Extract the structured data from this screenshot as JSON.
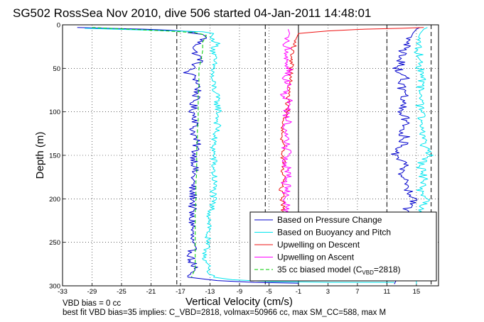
{
  "chart_data": {
    "type": "line",
    "title": "SG502 RossSea Nov 2010, dive 506 started 04-Jan-2011 14:48:01",
    "xlabel": "Vertical Velocity (cm/s)",
    "ylabel": "Depth (m)",
    "xlim": [
      -33,
      18
    ],
    "ylim": [
      300,
      0
    ],
    "y_reversed": true,
    "grid": "dotted",
    "x_ticks": [
      -33,
      -29,
      -25,
      -21,
      -17,
      -13,
      -9,
      -5,
      -1,
      3,
      7,
      11,
      15
    ],
    "y_ticks": [
      0,
      50,
      100,
      150,
      200,
      250,
      300
    ],
    "legend_position": "bottom-right",
    "legend": [
      {
        "label": "Based on Pressure Change",
        "color": "#0000cc",
        "style": "solid"
      },
      {
        "label": "Based on Buoyancy and Pitch",
        "color": "#00e5ee",
        "style": "solid"
      },
      {
        "label": "Upwelling on Descent",
        "color": "#ee1111",
        "style": "solid"
      },
      {
        "label": "Upwelling on Ascent",
        "color": "#ff00ff",
        "style": "solid"
      },
      {
        "label_prefix": "35 cc biased model (C",
        "label_sub": "VBD",
        "label_suffix": "=2818)",
        "color": "#00cc00",
        "style": "dashed"
      }
    ],
    "reference_lines": [
      {
        "x": -17.5,
        "style": "dashed",
        "color": "#000000"
      },
      {
        "x": -5.5,
        "style": "dashed",
        "color": "#000000"
      },
      {
        "x": -1.0,
        "style": "solid",
        "color": "#000000"
      },
      {
        "x": 11.0,
        "style": "dashed",
        "color": "#000000"
      },
      {
        "x": 17.0,
        "style": "dashed",
        "color": "#000000"
      }
    ],
    "series": [
      {
        "key": "pressure_descent",
        "color": "#0000cc",
        "width": 1,
        "points": [
          [
            -31,
            3
          ],
          [
            -27,
            4
          ],
          [
            -22,
            5
          ],
          [
            -19,
            6
          ],
          [
            -17,
            7
          ],
          [
            -15,
            8
          ],
          [
            -16,
            9
          ],
          [
            -14,
            11
          ],
          [
            -13.5,
            14
          ],
          [
            -14.5,
            20
          ],
          [
            -15.2,
            30
          ],
          [
            -14.2,
            40
          ],
          [
            -15.5,
            50
          ],
          [
            -16.2,
            55
          ],
          [
            -15,
            60
          ],
          [
            -14.5,
            70
          ],
          [
            -14.8,
            80
          ],
          [
            -15.3,
            90
          ],
          [
            -15.3,
            100
          ],
          [
            -14.8,
            110
          ],
          [
            -15.3,
            120
          ],
          [
            -15,
            130
          ],
          [
            -14.8,
            140
          ],
          [
            -15.1,
            150
          ],
          [
            -15,
            160
          ],
          [
            -15.2,
            170
          ],
          [
            -15.3,
            180
          ],
          [
            -15.5,
            190
          ],
          [
            -15.2,
            200
          ],
          [
            -15.4,
            210
          ],
          [
            -15.6,
            220
          ],
          [
            -15.3,
            230
          ],
          [
            -15.5,
            240
          ],
          [
            -15.5,
            250
          ],
          [
            -15.4,
            260
          ],
          [
            -15.6,
            270
          ],
          [
            -15,
            280
          ],
          [
            -16,
            285
          ],
          [
            -16,
            290
          ],
          [
            -12,
            294
          ],
          [
            -7,
            296
          ],
          [
            -1,
            297
          ]
        ]
      },
      {
        "key": "buoyancy_descent",
        "color": "#00e5ee",
        "width": 1,
        "points": [
          [
            -30,
            4
          ],
          [
            -26,
            5
          ],
          [
            -22,
            6
          ],
          [
            -18,
            7
          ],
          [
            -14,
            8
          ],
          [
            -12.5,
            10
          ],
          [
            -13,
            15
          ],
          [
            -12,
            20
          ],
          [
            -12.5,
            30
          ],
          [
            -12.5,
            40
          ],
          [
            -12.5,
            50
          ],
          [
            -12.8,
            60
          ],
          [
            -12.5,
            70
          ],
          [
            -12.2,
            80
          ],
          [
            -12,
            90
          ],
          [
            -11.8,
            100
          ],
          [
            -12,
            110
          ],
          [
            -12,
            120
          ],
          [
            -12.5,
            130
          ],
          [
            -12.5,
            140
          ],
          [
            -12.5,
            150
          ],
          [
            -12.5,
            160
          ],
          [
            -12.5,
            170
          ],
          [
            -12.4,
            180
          ],
          [
            -12.5,
            190
          ],
          [
            -12.6,
            200
          ],
          [
            -12.8,
            210
          ],
          [
            -13,
            220
          ],
          [
            -13,
            230
          ],
          [
            -13.3,
            240
          ],
          [
            -13.5,
            250
          ],
          [
            -13.5,
            260
          ],
          [
            -13.6,
            270
          ],
          [
            -13.3,
            280
          ],
          [
            -13.5,
            285
          ],
          [
            -12.5,
            290
          ],
          [
            -10,
            293
          ],
          [
            -5,
            295
          ],
          [
            3,
            296
          ],
          [
            12,
            296
          ]
        ]
      },
      {
        "key": "pressure_ascent",
        "color": "#0000cc",
        "width": 1,
        "points": [
          [
            12,
            298
          ],
          [
            12.5,
            290
          ],
          [
            13,
            280
          ],
          [
            12,
            270
          ],
          [
            13,
            260
          ],
          [
            12.5,
            250
          ],
          [
            13,
            240
          ],
          [
            12.5,
            230
          ],
          [
            12.5,
            220
          ],
          [
            14,
            210
          ],
          [
            15,
            200
          ],
          [
            14,
            190
          ],
          [
            14,
            180
          ],
          [
            13,
            170
          ],
          [
            13.5,
            160
          ],
          [
            12,
            150
          ],
          [
            13,
            140
          ],
          [
            13.5,
            130
          ],
          [
            13,
            120
          ],
          [
            13.5,
            110
          ],
          [
            13,
            100
          ],
          [
            13.3,
            90
          ],
          [
            13.2,
            80
          ],
          [
            13,
            70
          ],
          [
            13.5,
            60
          ],
          [
            12.5,
            50
          ],
          [
            13,
            40
          ],
          [
            13.2,
            30
          ],
          [
            14,
            20
          ],
          [
            14.5,
            10
          ],
          [
            15,
            5
          ],
          [
            15.5,
            3
          ]
        ]
      },
      {
        "key": "buoyancy_ascent",
        "color": "#00e5ee",
        "width": 1,
        "points": [
          [
            15,
            298
          ],
          [
            15,
            290
          ],
          [
            14.8,
            280
          ],
          [
            14.8,
            270
          ],
          [
            15,
            260
          ],
          [
            15.2,
            250
          ],
          [
            15,
            240
          ],
          [
            15.2,
            230
          ],
          [
            15,
            220
          ],
          [
            15.5,
            210
          ],
          [
            16.5,
            200
          ],
          [
            15.5,
            190
          ],
          [
            16,
            180
          ],
          [
            15.8,
            170
          ],
          [
            15.5,
            160
          ],
          [
            17,
            150
          ],
          [
            16,
            140
          ],
          [
            16,
            130
          ],
          [
            15.5,
            120
          ],
          [
            15.8,
            110
          ],
          [
            15.5,
            100
          ],
          [
            15.5,
            90
          ],
          [
            16,
            80
          ],
          [
            15.5,
            70
          ],
          [
            16,
            60
          ],
          [
            15.5,
            50
          ],
          [
            15.5,
            40
          ],
          [
            15.2,
            30
          ],
          [
            15,
            20
          ],
          [
            15.5,
            10
          ],
          [
            16,
            5
          ],
          [
            16.5,
            3
          ]
        ]
      },
      {
        "key": "upwelling_descent",
        "color": "#ee1111",
        "width": 1,
        "points": [
          [
            -3.5,
            290
          ],
          [
            -3.2,
            280
          ],
          [
            -3,
            270
          ],
          [
            -3.4,
            260
          ],
          [
            -3,
            250
          ],
          [
            -3.3,
            240
          ],
          [
            -3.1,
            230
          ],
          [
            -3.4,
            220
          ],
          [
            -3.1,
            210
          ],
          [
            -3.2,
            200
          ],
          [
            -3.4,
            190
          ],
          [
            -3,
            180
          ],
          [
            -3.2,
            170
          ],
          [
            -3,
            160
          ],
          [
            -3.3,
            150
          ],
          [
            -3,
            140
          ],
          [
            -3.2,
            130
          ],
          [
            -3.1,
            120
          ],
          [
            -2.9,
            110
          ],
          [
            -2.5,
            100
          ],
          [
            -2.5,
            90
          ],
          [
            -2.3,
            80
          ],
          [
            -2.2,
            70
          ],
          [
            -2.1,
            60
          ],
          [
            -2,
            50
          ],
          [
            -1.9,
            40
          ],
          [
            -1.8,
            30
          ],
          [
            -1.5,
            20
          ],
          [
            -1,
            10
          ],
          [
            3,
            7
          ],
          [
            8,
            5
          ],
          [
            13,
            4
          ],
          [
            16,
            3
          ]
        ]
      },
      {
        "key": "upwelling_ascent",
        "color": "#ff00ff",
        "width": 1,
        "points": [
          [
            -3,
            290
          ],
          [
            -2.6,
            280
          ],
          [
            -3,
            270
          ],
          [
            -2.5,
            260
          ],
          [
            -2.8,
            250
          ],
          [
            -2.4,
            240
          ],
          [
            -2.9,
            230
          ],
          [
            -2.5,
            220
          ],
          [
            -2.6,
            210
          ],
          [
            -2.8,
            200
          ],
          [
            -2.5,
            190
          ],
          [
            -2.8,
            180
          ],
          [
            -2.2,
            170
          ],
          [
            -2.8,
            160
          ],
          [
            -2.3,
            150
          ],
          [
            -2.8,
            140
          ],
          [
            -2.2,
            130
          ],
          [
            -2.9,
            120
          ],
          [
            -2.3,
            110
          ],
          [
            -2.8,
            100
          ],
          [
            -2.1,
            90
          ],
          [
            -2.9,
            80
          ],
          [
            -2.2,
            70
          ],
          [
            -2.8,
            60
          ],
          [
            -2.2,
            50
          ],
          [
            -2.7,
            40
          ],
          [
            -2.3,
            30
          ],
          [
            -2.6,
            20
          ],
          [
            -2.2,
            10
          ],
          [
            -2.4,
            5
          ]
        ]
      },
      {
        "key": "model_descent",
        "color": "#00cc00",
        "width": 1,
        "dashed": true,
        "points": [
          [
            -29,
            3
          ],
          [
            -24,
            5
          ],
          [
            -19,
            7
          ],
          [
            -15,
            9
          ],
          [
            -13.5,
            12
          ],
          [
            -14,
            20
          ],
          [
            -14,
            30
          ],
          [
            -14.2,
            40
          ],
          [
            -14.5,
            50
          ],
          [
            -14.5,
            60
          ],
          [
            -14.5,
            70
          ],
          [
            -14.6,
            80
          ],
          [
            -14.6,
            90
          ],
          [
            -14.6,
            100
          ],
          [
            -14.6,
            110
          ],
          [
            -14.7,
            120
          ],
          [
            -14.7,
            130
          ],
          [
            -14.8,
            140
          ],
          [
            -14.8,
            150
          ],
          [
            -14.8,
            160
          ],
          [
            -14.8,
            170
          ],
          [
            -14.9,
            180
          ],
          [
            -14.9,
            190
          ],
          [
            -14.9,
            200
          ],
          [
            -15,
            210
          ],
          [
            -15,
            220
          ],
          [
            -15,
            230
          ],
          [
            -15,
            240
          ],
          [
            -15,
            250
          ],
          [
            -15,
            260
          ],
          [
            -15,
            270
          ],
          [
            -15,
            280
          ],
          [
            -15.5,
            290
          ]
        ]
      }
    ]
  },
  "footer": {
    "line1": "VBD bias = 0 cc",
    "line2": "best fit VBD bias=35 implies: C_VBD=2818, volmax=50966 cc, max SM_CC=588, max M"
  }
}
